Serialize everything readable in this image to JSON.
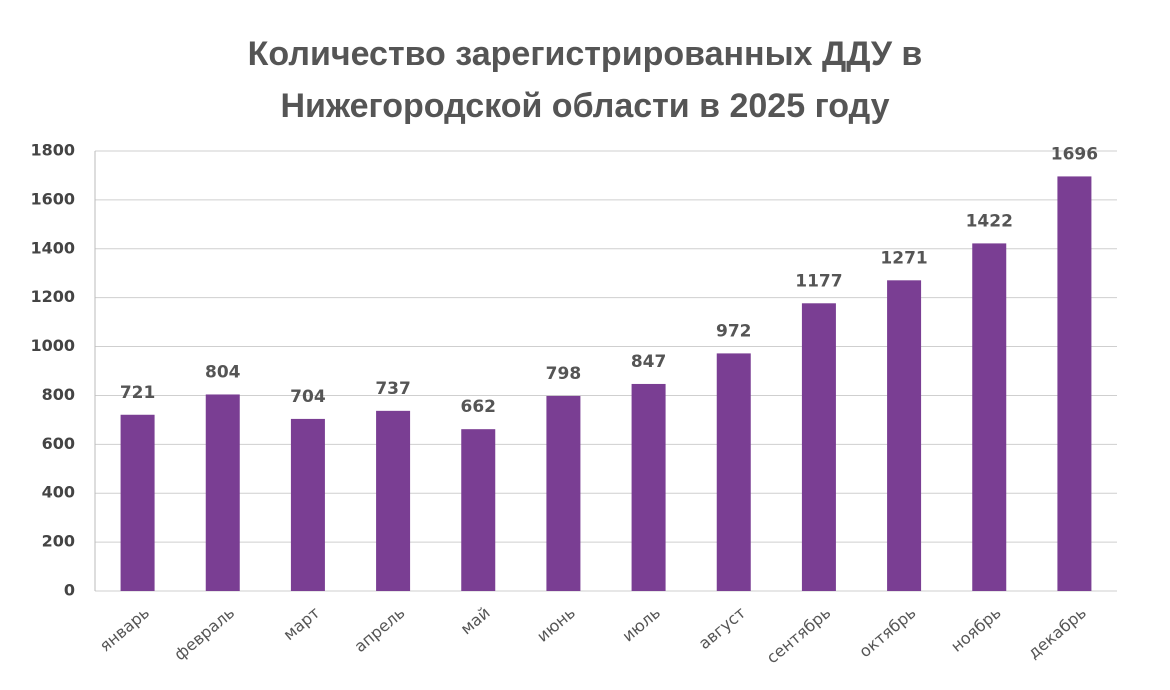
{
  "chart_data": {
    "type": "bar",
    "title": "Количество зарегистрированных ДДУ в Нижегородской области в 2025 году",
    "categories": [
      "январь",
      "февраль",
      "март",
      "апрель",
      "май",
      "июнь",
      "июль",
      "август",
      "сентябрь",
      "октябрь",
      "ноябрь",
      "декабрь"
    ],
    "values": [
      721,
      804,
      704,
      737,
      662,
      798,
      847,
      972,
      1177,
      1271,
      1422,
      1696
    ],
    "color": "#7a3e93",
    "ylim": [
      0,
      1800
    ],
    "yticks": [
      0,
      200,
      400,
      600,
      800,
      1000,
      1200,
      1400,
      1600,
      1800
    ],
    "grid": true
  }
}
